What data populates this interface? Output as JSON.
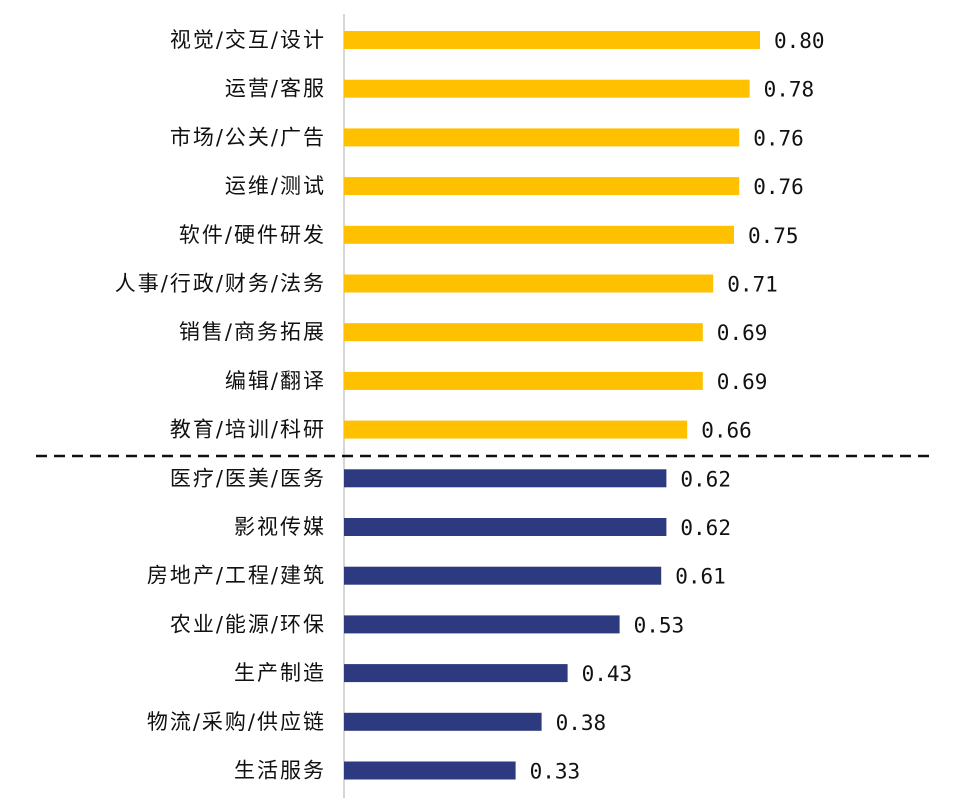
{
  "chart_data": {
    "type": "bar",
    "orientation": "horizontal",
    "categories": [
      "视觉/交互/设计",
      "运营/客服",
      "市场/公关/广告",
      "运维/测试",
      "软件/硬件研发",
      "人事/行政/财务/法务",
      "销售/商务拓展",
      "编辑/翻译",
      "教育/培训/科研",
      "医疗/医美/医务",
      "影视传媒",
      "房地产/工程/建筑",
      "农业/能源/环保",
      "生产制造",
      "物流/采购/供应链",
      "生活服务"
    ],
    "values": [
      0.8,
      0.78,
      0.76,
      0.76,
      0.75,
      0.71,
      0.69,
      0.69,
      0.66,
      0.62,
      0.62,
      0.61,
      0.53,
      0.43,
      0.38,
      0.33
    ],
    "value_labels": [
      "0.80",
      "0.78",
      "0.76",
      "0.76",
      "0.75",
      "0.71",
      "0.69",
      "0.69",
      "0.66",
      "0.62",
      "0.62",
      "0.61",
      "0.53",
      "0.43",
      "0.38",
      "0.33"
    ],
    "groups": [
      {
        "color": "#FFC000",
        "count": 9
      },
      {
        "color": "#2E3A7F",
        "count": 7
      }
    ],
    "divider": "dashed line between groups",
    "xlim": [
      0,
      1.0
    ],
    "title": "",
    "xlabel": "",
    "ylabel": "",
    "grid": false,
    "legend": "none"
  }
}
